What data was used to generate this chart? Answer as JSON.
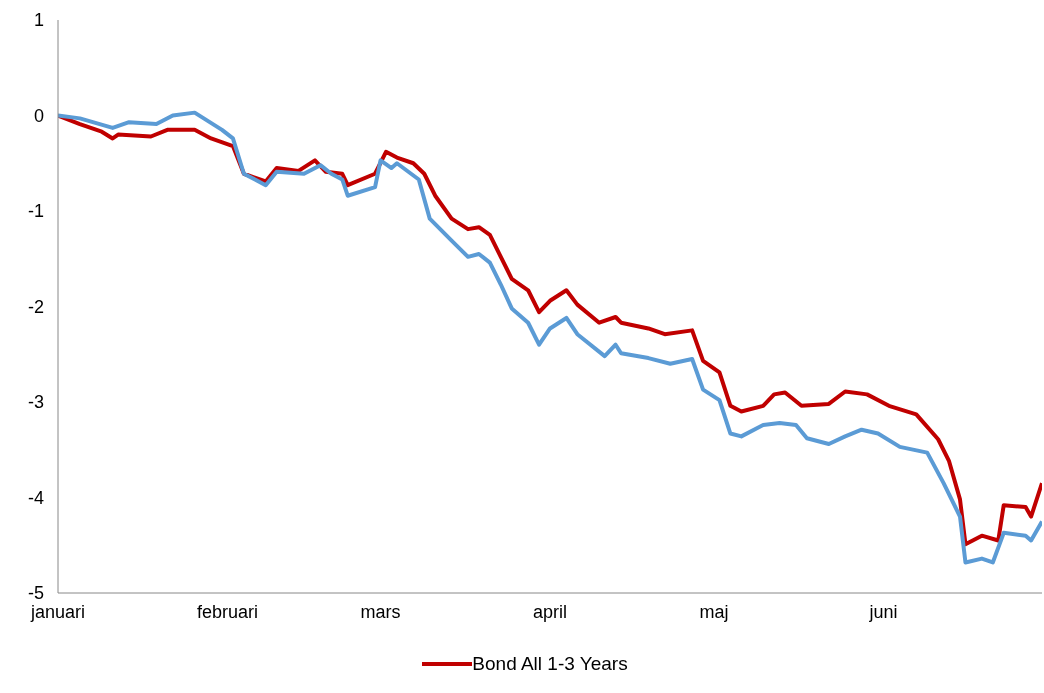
{
  "chart_data": {
    "type": "line",
    "legend": "bottom",
    "grid": false,
    "marker": "none",
    "line_style": "solid",
    "xlim": [
      "--01-01",
      "--06-30"
    ],
    "xticks": [
      {
        "value": "--01-01",
        "label": "januari"
      },
      {
        "value": "--02-01",
        "label": "februari"
      },
      {
        "value": "--03-01",
        "label": "mars"
      },
      {
        "value": "--04-01",
        "label": "april"
      },
      {
        "value": "--05-01",
        "label": "maj"
      },
      {
        "value": "--06-01",
        "label": "juni"
      }
    ],
    "ylim": [
      -5,
      1
    ],
    "yticks": [
      -5,
      -4,
      -3,
      -2,
      -1,
      0,
      1
    ],
    "series": [
      {
        "name": "Bond All 1-3 Years",
        "color": "#c00000",
        "x": [
          "--01-01",
          "--01-05",
          "--01-09",
          "--01-11",
          "--01-12",
          "--01-18",
          "--01-21",
          "--01-26",
          "--01-29",
          "--02-02",
          "--02-04",
          "--02-08",
          "--02-10",
          "--02-14",
          "--02-17",
          "--02-19",
          "--02-22",
          "--02-23",
          "--02-28",
          "--03-02",
          "--03-04",
          "--03-07",
          "--03-09",
          "--03-11",
          "--03-14",
          "--03-17",
          "--03-19",
          "--03-21",
          "--03-23",
          "--03-25",
          "--03-28",
          "--03-30",
          "--04-01",
          "--04-04",
          "--04-06",
          "--04-10",
          "--04-13",
          "--04-14",
          "--04-19",
          "--04-22",
          "--04-27",
          "--04-29",
          "--05-02",
          "--05-04",
          "--05-06",
          "--05-10",
          "--05-12",
          "--05-14",
          "--05-17",
          "--05-22",
          "--05-25",
          "--05-29",
          "--06-02",
          "--06-07",
          "--06-11",
          "--06-13",
          "--06-15",
          "--06-16",
          "--06-19",
          "--06-22",
          "--06-23",
          "--06-27",
          "--06-28",
          "--06-30"
        ],
        "values": [
          0,
          -0.09,
          -0.17,
          -0.24,
          -0.2,
          -0.22,
          -0.15,
          -0.15,
          -0.24,
          -0.32,
          -0.61,
          -0.69,
          -0.55,
          -0.58,
          -0.47,
          -0.59,
          -0.61,
          -0.73,
          -0.61,
          -0.38,
          -0.44,
          -0.5,
          -0.61,
          -0.84,
          -1.08,
          -1.19,
          -1.17,
          -1.25,
          -1.48,
          -1.71,
          -1.83,
          -2.06,
          -1.94,
          -1.83,
          -1.98,
          -2.17,
          -2.11,
          -2.17,
          -2.23,
          -2.29,
          -2.25,
          -2.57,
          -2.69,
          -3.04,
          -3.1,
          -3.04,
          -2.92,
          -2.9,
          -3.04,
          -3.02,
          -2.89,
          -2.92,
          -3.04,
          -3.13,
          -3.39,
          -3.62,
          -4.02,
          -4.49,
          -4.4,
          -4.45,
          -4.08,
          -4.1,
          -4.2,
          -3.85
        ]
      },
      {
        "color": "#5b9bd5",
        "x": [
          "--01-01",
          "--01-05",
          "--01-11",
          "--01-14",
          "--01-19",
          "--01-22",
          "--01-26",
          "--01-31",
          "--02-02",
          "--02-04",
          "--02-08",
          "--02-10",
          "--02-15",
          "--02-18",
          "--02-20",
          "--02-22",
          "--02-23",
          "--02-28",
          "--03-01",
          "--03-03",
          "--03-04",
          "--03-08",
          "--03-10",
          "--03-14",
          "--03-17",
          "--03-19",
          "--03-21",
          "--03-23",
          "--03-25",
          "--03-28",
          "--03-30",
          "--04-01",
          "--04-04",
          "--04-06",
          "--04-11",
          "--04-13",
          "--04-14",
          "--04-19",
          "--04-23",
          "--04-27",
          "--04-29",
          "--05-02",
          "--05-04",
          "--05-06",
          "--05-10",
          "--05-13",
          "--05-16",
          "--05-18",
          "--05-22",
          "--05-25",
          "--05-28",
          "--05-31",
          "--06-04",
          "--06-09",
          "--06-12",
          "--06-15",
          "--06-16",
          "--06-19",
          "--06-21",
          "--06-23",
          "--06-27",
          "--06-28",
          "--06-30"
        ],
        "values": [
          0,
          -0.03,
          -0.13,
          -0.07,
          -0.09,
          0,
          0.03,
          -0.15,
          -0.24,
          -0.61,
          -0.73,
          -0.59,
          -0.61,
          -0.52,
          -0.61,
          -0.67,
          -0.84,
          -0.75,
          -0.47,
          -0.55,
          -0.5,
          -0.67,
          -1.08,
          -1.31,
          -1.48,
          -1.45,
          -1.54,
          -1.77,
          -2.02,
          -2.17,
          -2.4,
          -2.23,
          -2.12,
          -2.29,
          -2.52,
          -2.4,
          -2.49,
          -2.54,
          -2.6,
          -2.55,
          -2.87,
          -2.98,
          -3.33,
          -3.36,
          -3.24,
          -3.22,
          -3.24,
          -3.38,
          -3.44,
          -3.36,
          -3.29,
          -3.33,
          -3.47,
          -3.53,
          -3.85,
          -4.2,
          -4.68,
          -4.64,
          -4.68,
          -4.37,
          -4.4,
          -4.45,
          -4.25
        ]
      }
    ]
  }
}
